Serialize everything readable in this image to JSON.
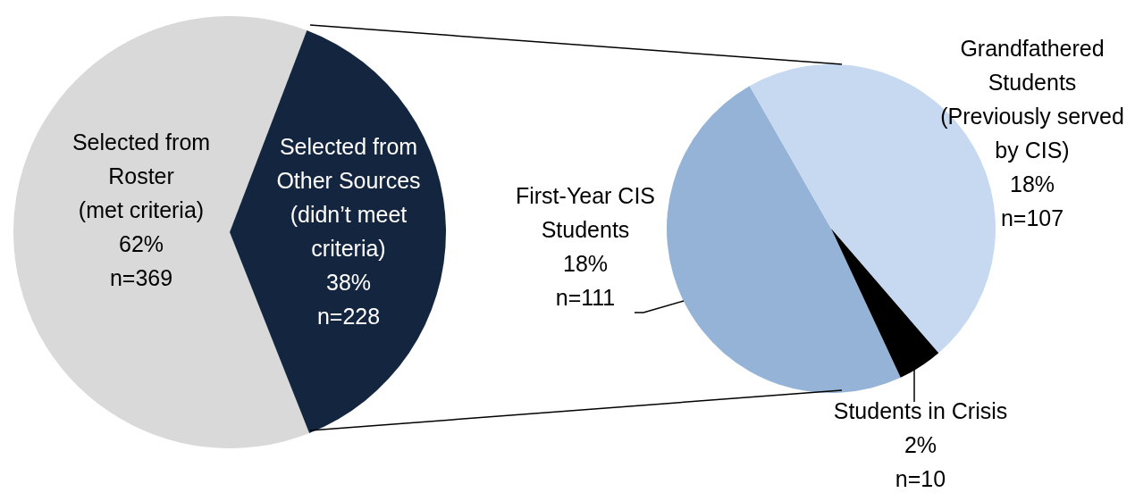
{
  "chart_data": [
    {
      "type": "pie",
      "categories": [
        "Selected from Roster (met criteria)",
        "Selected from Other Sources (didn’t meet criteria)"
      ],
      "values": [
        369,
        228
      ],
      "colors": [
        "#d9d9d9",
        "#14263f"
      ],
      "value_labels": [
        "62%\nn=369",
        "38%\nn=228"
      ]
    },
    {
      "type": "pie",
      "categories": [
        "First-Year CIS Students",
        "Grandfathered Students (Previously served by CIS)",
        "Students in Crisis"
      ],
      "values": [
        111,
        107,
        10
      ],
      "colors": [
        "#95b3d7",
        "#c6d9f1",
        "#000000"
      ],
      "value_labels": [
        "18%\nn=111",
        "18%\nn=107",
        "2%\nn=10"
      ]
    }
  ]
}
